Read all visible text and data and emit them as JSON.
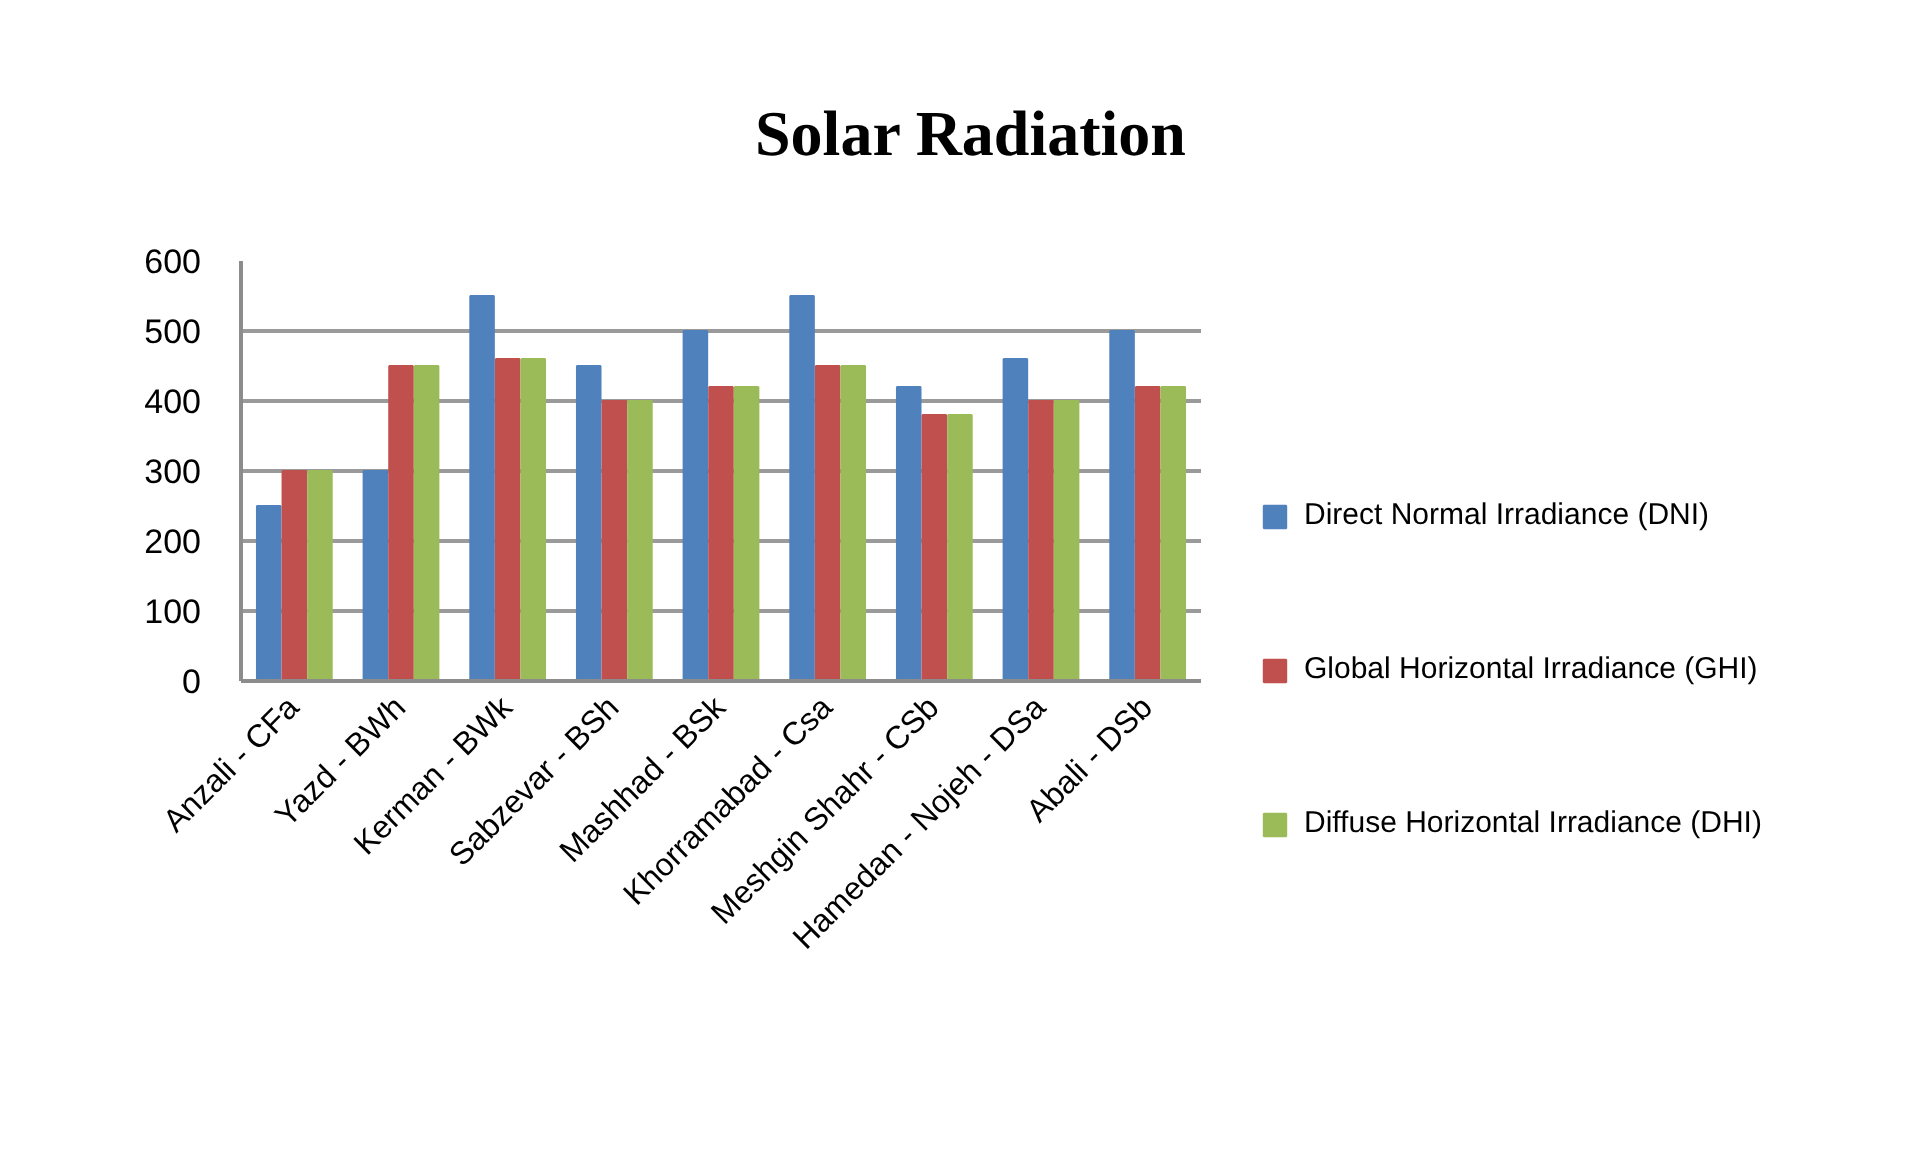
{
  "chart_data": {
    "type": "bar",
    "title": "Solar Radiation",
    "categories": [
      "Anzali - CFa",
      "Yazd - BWh",
      "Kerman - BWk",
      "Sabzevar - BSh",
      "Mashhad - BSk",
      "Khorramabad - Csa",
      "Meshgin Shahr - CSb",
      "Hamedan - Nojeh - DSa",
      "Abali - DSb"
    ],
    "series": [
      {
        "name": "Direct Normal Irradiance (DNI)",
        "color": "#4f81bd",
        "values": [
          250,
          300,
          550,
          450,
          500,
          550,
          420,
          460,
          500
        ]
      },
      {
        "name": "Global Horizontal Irradiance (GHI)",
        "color": "#c0504d",
        "values": [
          300,
          450,
          460,
          400,
          420,
          450,
          380,
          400,
          420
        ]
      },
      {
        "name": "Diffuse Horizontal Irradiance (DHI)",
        "color": "#9bbb59",
        "values": [
          300,
          450,
          460,
          400,
          420,
          450,
          380,
          400,
          420
        ]
      }
    ],
    "ylim": [
      0,
      600
    ],
    "yticks": [
      0,
      100,
      200,
      300,
      400,
      500,
      600
    ],
    "grid": "y",
    "legend": "right"
  }
}
